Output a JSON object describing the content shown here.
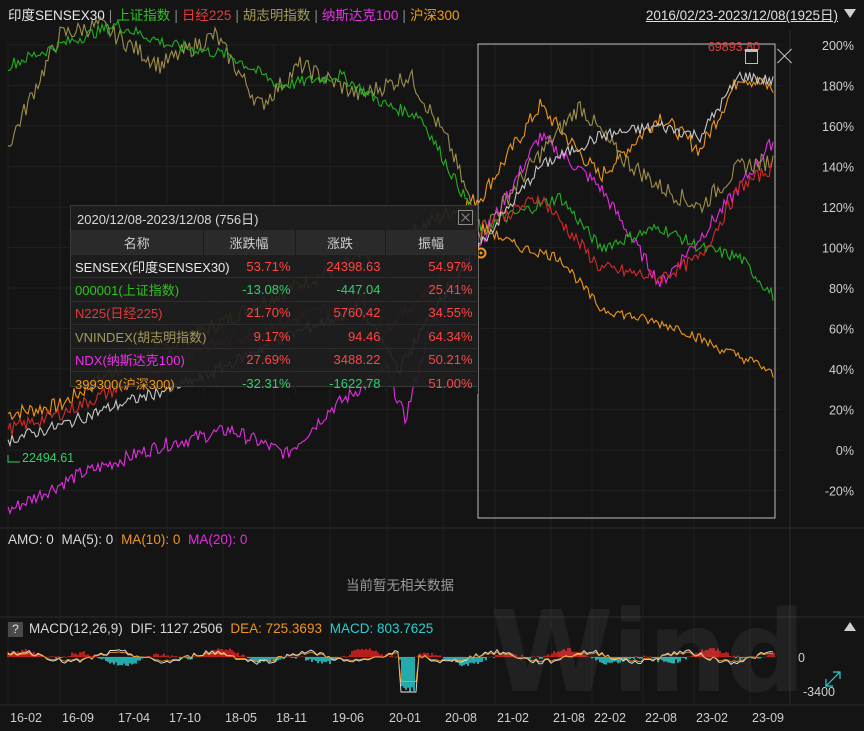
{
  "legend": {
    "items": [
      {
        "label": "印度SENSEX30",
        "color": "#e8e8e8"
      },
      {
        "label": "上证指数",
        "color": "#2ec41f"
      },
      {
        "label": "日经225",
        "color": "#e13a3a"
      },
      {
        "label": "胡志明指数",
        "color": "#a59a5b"
      },
      {
        "label": "纳斯达克100",
        "color": "#ea30ea"
      },
      {
        "label": "沪深300",
        "color": "#f39c12"
      }
    ],
    "date_range": "2016/02/23-2023/12/08(1925日)"
  },
  "y_axis": {
    "ticks": [
      "200%",
      "180%",
      "160%",
      "140%",
      "120%",
      "100%",
      "80%",
      "60%",
      "40%",
      "20%",
      "0%",
      "-20%"
    ]
  },
  "x_axis": {
    "ticks": [
      "16-02",
      "16-09",
      "17-04",
      "17-10",
      "18-05",
      "18-11",
      "19-06",
      "20-01",
      "20-08",
      "21-02",
      "21-08",
      "22-02",
      "22-08",
      "23-02",
      "23-09"
    ]
  },
  "annotations": {
    "max_value": "69893.80",
    "start_value": "22494.61"
  },
  "colors": {
    "sensex": "#c8c8c8",
    "shanghai": "#22b022",
    "nikkei": "#d42a2a",
    "vnindex": "#9c8f4e",
    "ndx": "#e22ee2",
    "csi300": "#f0961b",
    "positive": "#ff4545",
    "negative": "#2ed06a",
    "macd_pos": "#e02020",
    "macd_neg": "#28d0d0"
  },
  "stats": {
    "title": "2020/12/08-2023/12/08 (756日)",
    "columns": [
      "名称",
      "涨跌幅",
      "涨跌",
      "振幅"
    ],
    "rows": [
      {
        "name": "SENSEX(印度SENSEX30)",
        "name_color": "#e8e8e8",
        "pct": "53.71%",
        "change": "24398.63",
        "amplitude": "54.97%",
        "sign": "pos"
      },
      {
        "name": "000001(上证指数)",
        "name_color": "#2ec41f",
        "pct": "-13.08%",
        "change": "-447.04",
        "amplitude": "25.41%",
        "sign": "neg"
      },
      {
        "name": "N225(日经225)",
        "name_color": "#e13a3a",
        "pct": "21.70%",
        "change": "5760.42",
        "amplitude": "34.55%",
        "sign": "pos"
      },
      {
        "name": "VNINDEX(胡志明指数)",
        "name_color": "#a59a5b",
        "pct": "9.17%",
        "change": "94.46",
        "amplitude": "64.34%",
        "sign": "pos"
      },
      {
        "name": "NDX(纳斯达克100)",
        "name_color": "#ea30ea",
        "pct": "27.69%",
        "change": "3488.22",
        "amplitude": "50.21%",
        "sign": "pos"
      },
      {
        "name": "399300(沪深300)",
        "name_color": "#f39c12",
        "pct": "-32.31%",
        "change": "-1622.78",
        "amplitude": "51.00%",
        "sign": "neg"
      }
    ]
  },
  "amo": {
    "label": "AMO: 0",
    "ma5": "MA(5): 0",
    "ma10": "MA(10): 0",
    "ma20": "MA(20): 0",
    "ma10_color": "#f0961b",
    "ma20_color": "#e22ee2",
    "no_data": "当前暂无相关数据"
  },
  "macd": {
    "help": "?",
    "title": "MACD(12,26,9)",
    "dif": "DIF: 1127.2506",
    "dea": "DEA: 725.3693",
    "macd": "MACD: 803.7625",
    "y_ticks": [
      "0",
      "-3400"
    ]
  },
  "watermark": "Wind"
}
